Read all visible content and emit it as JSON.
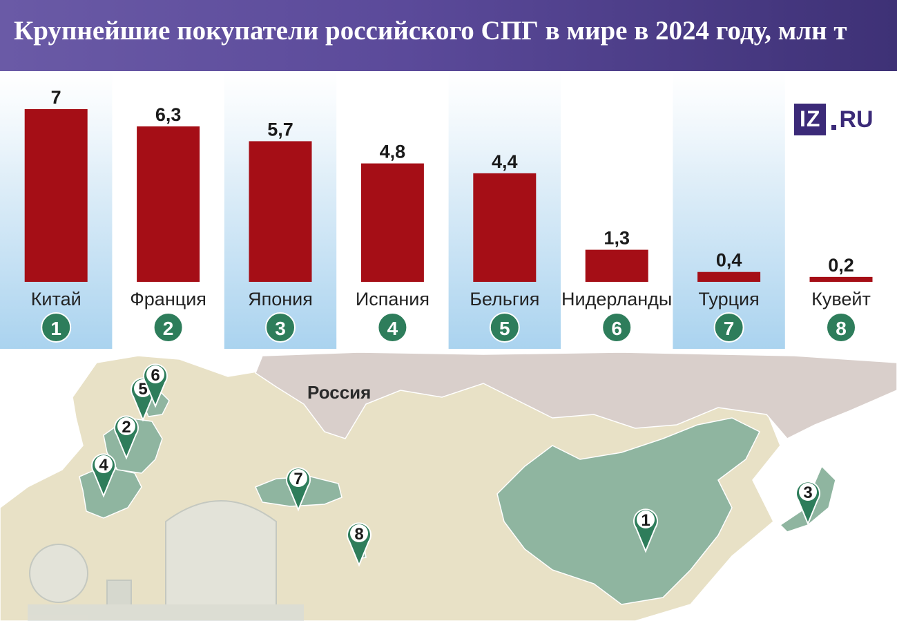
{
  "title": "Крупнейшие покупатели российского СПГ в мире в 2024 году, млн т",
  "logo": {
    "box": "IZ",
    "suffix": "RU"
  },
  "colors": {
    "bar": "#a50e16",
    "header": "#5b4a9a",
    "marker": "#2e7d5b",
    "highlight_country": "#8fb5a0",
    "land": "#e8e1c6",
    "russia": "#d9cfcb"
  },
  "map": {
    "russia_label": "Россия"
  },
  "chart_data": {
    "type": "bar",
    "categories": [
      "Китай",
      "Франция",
      "Япония",
      "Испания",
      "Бельгия",
      "Нидерланды",
      "Турция",
      "Кувейт"
    ],
    "values": [
      7,
      6.3,
      5.7,
      4.8,
      4.4,
      1.3,
      0.4,
      0.2
    ],
    "value_labels": [
      "7",
      "6,3",
      "5,7",
      "4,8",
      "4,4",
      "1,3",
      "0,4",
      "0,2"
    ],
    "ranks": [
      "1",
      "2",
      "3",
      "4",
      "5",
      "6",
      "7",
      "8"
    ],
    "title": "Крупнейшие покупатели российского СПГ в мире в 2024 году, млн т",
    "xlabel": "",
    "ylabel": "",
    "ylim": [
      0,
      7
    ],
    "grid": false,
    "legend": "none"
  },
  "map_markers": [
    {
      "rank": "1",
      "country": "Китай"
    },
    {
      "rank": "2",
      "country": "Франция"
    },
    {
      "rank": "3",
      "country": "Япония"
    },
    {
      "rank": "4",
      "country": "Испания"
    },
    {
      "rank": "5",
      "country": "Бельгия"
    },
    {
      "rank": "6",
      "country": "Нидерланды"
    },
    {
      "rank": "7",
      "country": "Турция"
    },
    {
      "rank": "8",
      "country": "Кувейт"
    }
  ]
}
